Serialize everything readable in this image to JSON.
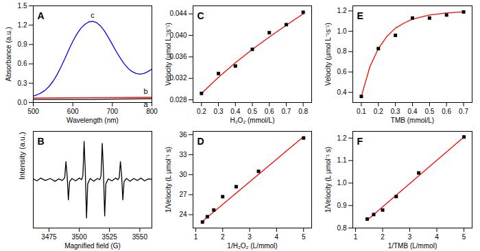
{
  "chart_data": [
    {
      "type": "line",
      "title": "A",
      "x_label": "Wavelength (nm)",
      "y_label": "Absorbance (a.u.)",
      "xlim": [
        500,
        800
      ],
      "xticks": [
        500,
        600,
        700,
        800
      ],
      "ylim": [
        0,
        1.5
      ],
      "yticks": [
        {
          "value": 0,
          "label": "0.0"
        },
        0.3,
        0.6,
        0.9,
        1.2,
        1.5
      ],
      "grid": false,
      "series": [
        {
          "name": "a",
          "type": "line",
          "color": "#000000",
          "x": [
            500,
            650,
            800
          ],
          "values": [
            0.05,
            0.05,
            0.06
          ]
        },
        {
          "name": "b",
          "type": "line",
          "color": "#ff0000",
          "x": [
            500,
            650,
            800
          ],
          "values": [
            0.07,
            0.075,
            0.08
          ]
        },
        {
          "name": "c",
          "type": "line",
          "color": "#0000ff",
          "x": [
            500,
            510,
            520,
            530,
            540,
            550,
            560,
            570,
            580,
            590,
            600,
            610,
            620,
            630,
            640,
            650,
            660,
            670,
            680,
            690,
            700,
            710,
            720,
            730,
            740,
            750,
            760,
            770,
            780,
            790,
            800
          ],
          "values": [
            0.1,
            0.12,
            0.15,
            0.19,
            0.25,
            0.33,
            0.43,
            0.55,
            0.68,
            0.82,
            0.95,
            1.06,
            1.15,
            1.21,
            1.25,
            1.26,
            1.24,
            1.19,
            1.11,
            1.01,
            0.9,
            0.79,
            0.69,
            0.6,
            0.53,
            0.48,
            0.45,
            0.44,
            0.45,
            0.48,
            0.52
          ]
        }
      ]
    },
    {
      "type": "line",
      "title": "B",
      "x_label": "Magnified field (G)",
      "y_label": "Intensity (a.u.)",
      "xlim": [
        3462,
        3560
      ],
      "xticks": [
        3475,
        3500,
        3525,
        3550
      ],
      "ylim": [
        -1.2,
        1.2
      ],
      "yticks": [],
      "tick_labels": "x",
      "grid": false,
      "series": [
        {
          "type": "line",
          "color": "#000000",
          "x": [
            3462,
            3465,
            3468,
            3472,
            3476,
            3480,
            3483,
            3486,
            3488,
            3489,
            3490,
            3491,
            3492,
            3494,
            3497,
            3500,
            3502,
            3503,
            3504,
            3505,
            3506,
            3507,
            3509,
            3512,
            3515,
            3517,
            3518,
            3519,
            3520,
            3521,
            3522,
            3524,
            3527,
            3530,
            3532,
            3533,
            3534,
            3535,
            3536,
            3537,
            3539,
            3542,
            3545,
            3548,
            3551,
            3554,
            3557,
            3560
          ],
          "values": [
            0.02,
            -0.03,
            0.04,
            -0.02,
            0.03,
            -0.04,
            0.02,
            -0.02,
            0.05,
            0.45,
            0.1,
            -0.5,
            -0.05,
            0.03,
            -0.03,
            0.04,
            0.0,
            0.1,
            0.95,
            0.2,
            -0.95,
            -0.1,
            0.03,
            -0.04,
            0.03,
            0.0,
            0.1,
            0.9,
            0.2,
            -0.9,
            -0.1,
            0.02,
            -0.03,
            0.04,
            0.0,
            0.05,
            0.45,
            0.1,
            -0.5,
            -0.05,
            0.03,
            -0.04,
            0.03,
            -0.02,
            0.04,
            -0.03,
            0.02,
            0.01
          ]
        }
      ]
    },
    {
      "type": "scatter",
      "title": "C",
      "x_label": "H₂O₂ (mmol/L)",
      "y_label": "Velocity (μmol L⁻¹s⁻¹)",
      "xlim": [
        0.15,
        0.85
      ],
      "xticks": [
        0.2,
        0.3,
        0.4,
        0.5,
        0.6,
        0.7,
        0.8
      ],
      "ylim": [
        0.0275,
        0.0455
      ],
      "yticks": [
        0.028,
        0.032,
        0.036,
        {
          "value": 0.04,
          "label": "0.040"
        },
        0.044
      ],
      "grid": false,
      "series": [
        {
          "type": "line",
          "color": "#ff0000",
          "x": [
            0.2,
            0.3,
            0.4,
            0.5,
            0.6,
            0.7,
            0.8
          ],
          "values": [
            0.0292,
            0.0322,
            0.0349,
            0.0374,
            0.0397,
            0.0419,
            0.044
          ]
        },
        {
          "type": "scatter",
          "marker": "square",
          "color": "#000000",
          "x": [
            0.2,
            0.3,
            0.4,
            0.5,
            0.6,
            0.7,
            0.8
          ],
          "values": [
            0.0292,
            0.0329,
            0.0343,
            0.0374,
            0.0405,
            0.042,
            0.0443
          ]
        }
      ]
    },
    {
      "type": "scatter",
      "title": "D",
      "x_label": "1/H₂O₂ (L/mmol)",
      "y_label": "1/Velocity (L μmol⁻¹ s)",
      "xlim": [
        0.9,
        5.3
      ],
      "xticks": [
        1,
        2,
        3,
        4,
        5
      ],
      "ylim": [
        22,
        36.5
      ],
      "yticks": [
        24,
        27,
        30,
        33,
        36
      ],
      "grid": false,
      "series": [
        {
          "type": "line",
          "color": "#ff0000",
          "x": [
            1.25,
            5.0
          ],
          "values": [
            23.0,
            35.7
          ]
        },
        {
          "type": "scatter",
          "marker": "square",
          "color": "#000000",
          "x": [
            1.25,
            1.43,
            1.67,
            2.0,
            2.5,
            3.33,
            5.0
          ],
          "values": [
            22.9,
            23.7,
            24.7,
            26.7,
            28.2,
            30.5,
            35.5
          ]
        }
      ]
    },
    {
      "type": "scatter",
      "title": "E",
      "x_label": "TMB (mmol/L)",
      "y_label": "Velocity (μmol L⁻¹s⁻¹)",
      "xlim": [
        0.05,
        0.75
      ],
      "xticks": [
        0.1,
        0.2,
        0.3,
        0.4,
        0.5,
        0.6,
        0.7
      ],
      "ylim": [
        0.3,
        1.25
      ],
      "yticks": [
        0.4,
        0.6,
        0.8,
        {
          "value": 1,
          "label": "1.0"
        },
        1.2
      ],
      "grid": false,
      "series": [
        {
          "type": "line",
          "color": "#ff0000",
          "x": [
            0.1,
            0.15,
            0.2,
            0.25,
            0.3,
            0.35,
            0.4,
            0.5,
            0.6,
            0.7
          ],
          "values": [
            0.36,
            0.65,
            0.83,
            0.95,
            1.03,
            1.08,
            1.12,
            1.16,
            1.18,
            1.19
          ]
        },
        {
          "type": "scatter",
          "marker": "square",
          "color": "#000000",
          "x": [
            0.1,
            0.2,
            0.3,
            0.4,
            0.5,
            0.6,
            0.7
          ],
          "values": [
            0.36,
            0.83,
            0.96,
            1.13,
            1.13,
            1.16,
            1.19
          ]
        }
      ]
    },
    {
      "type": "scatter",
      "title": "F",
      "x_label": "1/TMB (L/mmol)",
      "y_label": "1/Velocity (L μmol⁻¹ s)",
      "xlim": [
        0.9,
        5.3
      ],
      "xticks": [
        1,
        2,
        3,
        4,
        5
      ],
      "ylim": [
        0.8,
        1.23
      ],
      "yticks": [
        0.8,
        0.9,
        {
          "value": 1,
          "label": "1.0"
        },
        1.1,
        1.2
      ],
      "grid": false,
      "series": [
        {
          "type": "line",
          "color": "#ff0000",
          "x": [
            1.43,
            5.0
          ],
          "values": [
            0.835,
            1.205
          ]
        },
        {
          "type": "scatter",
          "marker": "square",
          "color": "#000000",
          "x": [
            1.43,
            1.67,
            2.0,
            2.5,
            3.33,
            5.0
          ],
          "values": [
            0.84,
            0.86,
            0.88,
            0.94,
            1.045,
            1.205
          ]
        }
      ]
    }
  ]
}
